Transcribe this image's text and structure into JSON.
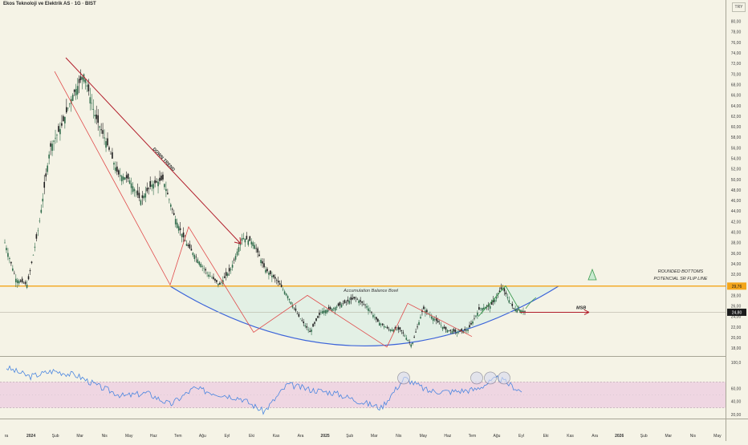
{
  "header": {
    "symbol_title": "Ekos Teknoloji ve Elektrik AS · 1G · BIST",
    "currency": "TRY"
  },
  "colors": {
    "background": "#f5f3e6",
    "candle_up": "#2f6b4a",
    "candle_down": "#1e1e1e",
    "resistance": "#f3a51b",
    "bowl": "#3b63d9",
    "bowl_fill": "#dfeee4",
    "trend_arrow": "#b11c2a",
    "zigzag": "#e04a4a",
    "rsi_line": "#4a86e0",
    "rsi_band": "#efd6e2",
    "price_tag": "#1c1c1c"
  },
  "annotations": {
    "down_trend": "DOWN TREND",
    "bowl_label": "Accumulation Balance Bowl",
    "rounded_line1": "ROUNDED BOTTOMS",
    "rounded_line2": "POTENCIAL SR FLIP LINE",
    "msb": "MSB"
  },
  "chart_data": [
    {
      "type": "candlestick",
      "title": "Ekos Teknoloji ve Elektrik AS · 1G · BIST",
      "x_tick_labels": [
        "ra",
        "2024",
        "Şub",
        "Mar",
        "Nis",
        "May",
        "Haz",
        "Tem",
        "Ağu",
        "Eyl",
        "Eki",
        "Kas",
        "Ara",
        "2025",
        "Şub",
        "Mar",
        "Nis",
        "May",
        "Haz",
        "Tem",
        "Ağu",
        "Eyl",
        "Eki",
        "Kas",
        "Ara",
        "2026",
        "Şub",
        "Mar",
        "Nis",
        "May"
      ],
      "y_ticks": [
        18,
        20,
        22,
        24,
        26,
        28,
        30,
        32,
        34,
        36,
        38,
        40,
        42,
        44,
        46,
        48,
        50,
        52,
        54,
        56,
        58,
        60,
        62,
        64,
        66,
        68,
        70,
        72,
        74,
        76,
        78,
        80
      ],
      "y_tick_labels": [
        "18,00",
        "20,00",
        "22,00",
        "24,00",
        "26,00",
        "28,00",
        "30,00",
        "32,00",
        "34,00",
        "36,00",
        "38,00",
        "40,00",
        "42,00",
        "44,00",
        "46,00",
        "48,00",
        "50,00",
        "52,00",
        "54,00",
        "56,00",
        "58,00",
        "60,00",
        "62,00",
        "64,00",
        "66,00",
        "68,00",
        "70,00",
        "72,00",
        "74,00",
        "76,00",
        "78,00",
        "80,00"
      ],
      "ylim": [
        16.5,
        81
      ],
      "close_series": [
        {
          "month": "Ara",
          "value": 38
        },
        {
          "month": "Ara",
          "value": 31
        },
        {
          "month": "2024",
          "value": 30
        },
        {
          "month": "2024",
          "value": 41
        },
        {
          "month": "Oca",
          "value": 56
        },
        {
          "month": "Oca",
          "value": 60
        },
        {
          "month": "Şub",
          "value": 66
        },
        {
          "month": "Şub",
          "value": 70
        },
        {
          "month": "Şub",
          "value": 62
        },
        {
          "month": "Mar",
          "value": 57
        },
        {
          "month": "Mar",
          "value": 51
        },
        {
          "month": "Nis",
          "value": 50
        },
        {
          "month": "Nis",
          "value": 46
        },
        {
          "month": "Nis",
          "value": 49
        },
        {
          "month": "May",
          "value": 50
        },
        {
          "month": "May",
          "value": 43
        },
        {
          "month": "May",
          "value": 38
        },
        {
          "month": "Haz",
          "value": 35
        },
        {
          "month": "Haz",
          "value": 32
        },
        {
          "month": "Haz",
          "value": 30
        },
        {
          "month": "Tem",
          "value": 33
        },
        {
          "month": "Tem",
          "value": 39
        },
        {
          "month": "Ağu",
          "value": 38
        },
        {
          "month": "Ağu",
          "value": 33
        },
        {
          "month": "Eyl",
          "value": 31
        },
        {
          "month": "Eyl",
          "value": 28
        },
        {
          "month": "Eki",
          "value": 24
        },
        {
          "month": "Eki",
          "value": 21
        },
        {
          "month": "Kas",
          "value": 25
        },
        {
          "month": "Kas",
          "value": 25.5
        },
        {
          "month": "Ara",
          "value": 26.5
        },
        {
          "month": "Ara",
          "value": 27.5
        },
        {
          "month": "2025",
          "value": 26
        },
        {
          "month": "Şub",
          "value": 23
        },
        {
          "month": "Mar",
          "value": 21.5
        },
        {
          "month": "Mar",
          "value": 21.5
        },
        {
          "month": "Nis",
          "value": 18.5
        },
        {
          "month": "Nis",
          "value": 25.5
        },
        {
          "month": "May",
          "value": 23.5
        },
        {
          "month": "Haz",
          "value": 21.5
        },
        {
          "month": "Haz",
          "value": 21
        },
        {
          "month": "Tem",
          "value": 21.5
        },
        {
          "month": "Tem",
          "value": 25.5
        },
        {
          "month": "Ağu",
          "value": 26
        },
        {
          "month": "Ağu",
          "value": 29.5
        },
        {
          "month": "Eyl",
          "value": 25.5
        },
        {
          "month": "Eyl",
          "value": 25
        }
      ],
      "current_price": 24.8,
      "current_price_label": "24,80",
      "resistance_level": 29.76,
      "resistance_label": "29,76"
    },
    {
      "type": "line",
      "name": "RSI",
      "y_tick_labels": [
        "20,00",
        "40,00",
        "60,00",
        "100,0"
      ],
      "y_ticks": [
        20,
        40,
        60,
        100
      ],
      "band": [
        30,
        70
      ],
      "ylim": [
        16,
        100
      ],
      "circled_peaks": [
        "Nis 2025",
        "Ağu 2025",
        "Ağu 2025",
        "Eyl 2025"
      ],
      "values": [
        {
          "month": "Ara",
          "value": 92
        },
        {
          "month": "2024",
          "value": 78
        },
        {
          "month": "Oca",
          "value": 87
        },
        {
          "month": "Şub",
          "value": 80
        },
        {
          "month": "Mar",
          "value": 62
        },
        {
          "month": "Nis",
          "value": 48
        },
        {
          "month": "May",
          "value": 53
        },
        {
          "month": "Haz",
          "value": 35
        },
        {
          "month": "Tem",
          "value": 60
        },
        {
          "month": "Ağu",
          "value": 52
        },
        {
          "month": "Eyl",
          "value": 45
        },
        {
          "month": "Eki",
          "value": 24
        },
        {
          "month": "Kas",
          "value": 66
        },
        {
          "month": "Ara",
          "value": 58
        },
        {
          "month": "2025",
          "value": 53
        },
        {
          "month": "Şub",
          "value": 41
        },
        {
          "month": "Mar",
          "value": 30
        },
        {
          "month": "Nis",
          "value": 76
        },
        {
          "month": "May",
          "value": 56
        },
        {
          "month": "Haz",
          "value": 55
        },
        {
          "month": "Tem",
          "value": 58
        },
        {
          "month": "Ağu",
          "value": 76
        },
        {
          "month": "Eyl",
          "value": 55
        }
      ]
    }
  ]
}
